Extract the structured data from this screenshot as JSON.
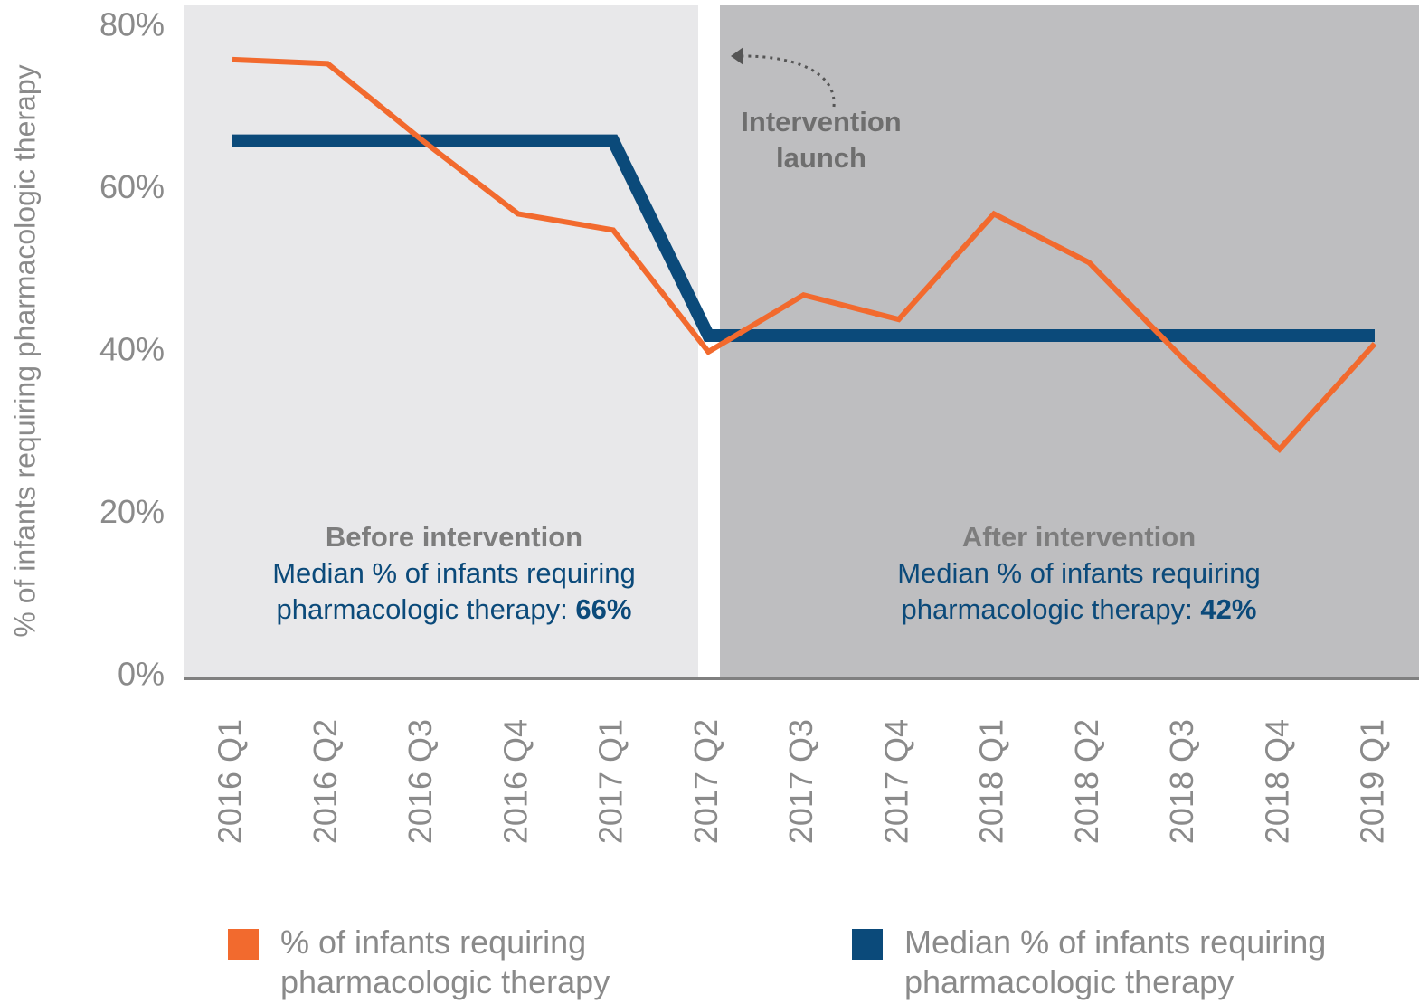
{
  "chart_data": {
    "type": "line",
    "ylabel": "% of infants requiring pharmacologic therapy",
    "categories": [
      "2016 Q1",
      "2016 Q2",
      "2016 Q3",
      "2016 Q4",
      "2017 Q1",
      "2017 Q2",
      "2017 Q3",
      "2017 Q4",
      "2018 Q1",
      "2018 Q2",
      "2018 Q3",
      "2018 Q4",
      "2019 Q1"
    ],
    "series": [
      {
        "name": "% of infants requiring pharmacologic therapy",
        "color": "#f26a2e",
        "values": [
          76,
          75.5,
          66,
          57,
          55,
          40,
          47,
          44,
          57,
          51,
          39,
          28,
          41
        ]
      },
      {
        "name": "Median % of infants requiring pharmacologic therapy",
        "color": "#0b4a7a",
        "values": [
          66,
          66,
          66,
          66,
          66,
          42,
          42,
          42,
          42,
          42,
          42,
          42,
          42
        ]
      }
    ],
    "ylim": [
      0,
      80
    ],
    "yticks": [
      {
        "value": 0,
        "label": "0%"
      },
      {
        "value": 20,
        "label": "20%"
      },
      {
        "value": 40,
        "label": "40%"
      },
      {
        "value": 60,
        "label": "60%"
      },
      {
        "value": 80,
        "label": "80%"
      }
    ],
    "annotations": {
      "launch": [
        "Intervention",
        "launch"
      ],
      "before": {
        "heading": "Before intervention",
        "text": "Median % of infants requiring pharmacologic therapy:",
        "value": "66%"
      },
      "after": {
        "heading": "After intervention",
        "text": "Median % of infants requiring pharmacologic therapy:",
        "value": "42%"
      }
    },
    "legend": "bottom"
  }
}
